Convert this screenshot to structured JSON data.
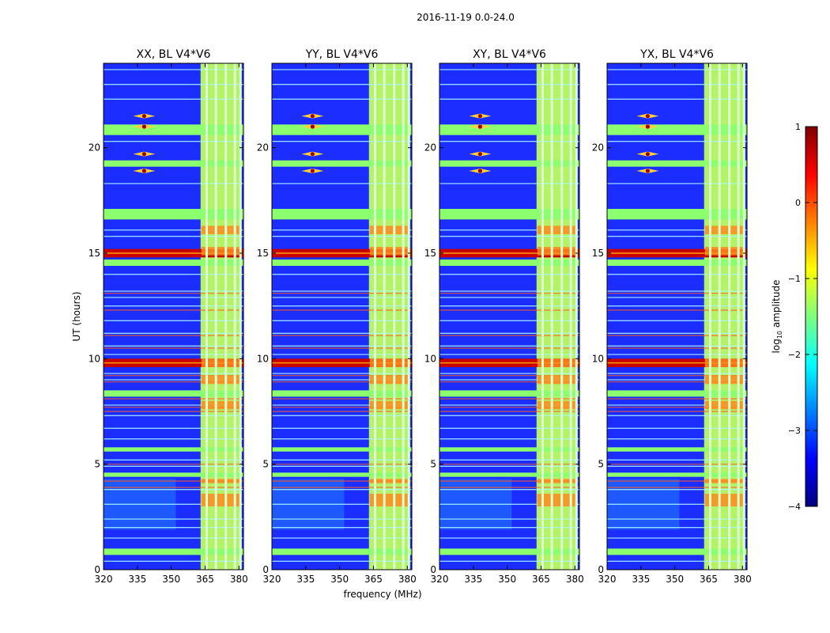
{
  "figure": {
    "suptitle": "2016-11-19 0.0-24.0"
  },
  "colors": {
    "jet": [
      "#00007f",
      "#0000ff",
      "#007fff",
      "#00ffff",
      "#7fff7f",
      "#ffff00",
      "#ff7f00",
      "#ff0000",
      "#7f0000"
    ],
    "panel_base": "#1b2eff",
    "band_strong": "#c80000",
    "band_medium": "#8cff6e",
    "channel_fill": "#b4f266"
  },
  "chart_data": [
    {
      "type": "heatmap",
      "title": "XX, BL V4*V6",
      "xlabel": "",
      "ylabel": "UT (hours)",
      "xlim": [
        320,
        382
      ],
      "ylim": [
        0,
        24
      ],
      "xticks": [
        "320",
        "335",
        "350",
        "365",
        "380"
      ],
      "yticks": [
        "0",
        "5",
        "10",
        "15",
        "20"
      ]
    },
    {
      "type": "heatmap",
      "title": "YY, BL V4*V6",
      "xlabel": "frequency (MHz)",
      "ylabel": "",
      "xlim": [
        320,
        382
      ],
      "ylim": [
        0,
        24
      ],
      "xticks": [
        "320",
        "335",
        "350",
        "365",
        "380"
      ],
      "yticks": [
        "0",
        "5",
        "10",
        "15",
        "20"
      ]
    },
    {
      "type": "heatmap",
      "title": "XY, BL V4*V6",
      "xlabel": "",
      "ylabel": "",
      "xlim": [
        320,
        382
      ],
      "ylim": [
        0,
        24
      ],
      "xticks": [
        "320",
        "335",
        "350",
        "365",
        "380"
      ],
      "yticks": [
        "0",
        "5",
        "10",
        "15",
        "20"
      ]
    },
    {
      "type": "heatmap",
      "title": "YX, BL V4*V6",
      "xlabel": "",
      "ylabel": "",
      "xlim": [
        320,
        382
      ],
      "ylim": [
        0,
        24
      ],
      "xticks": [
        "320",
        "335",
        "350",
        "365",
        "380"
      ],
      "yticks": [
        "0",
        "5",
        "10",
        "15",
        "20"
      ]
    }
  ],
  "features": {
    "strong_bands_ut": [
      [
        14.8,
        15.2
      ],
      [
        9.6,
        10.0
      ]
    ],
    "medium_bands_ut": [
      [
        20.6,
        21.1
      ],
      [
        19.1,
        19.4
      ],
      [
        16.6,
        17.1
      ],
      [
        14.4,
        14.7
      ],
      [
        8.2,
        8.5
      ],
      [
        5.6,
        5.8
      ],
      [
        4.4,
        4.6
      ],
      [
        0.7,
        1.0
      ]
    ],
    "thin_lines_ut": [
      23.7,
      23.0,
      22.3,
      20.3,
      18.3,
      16.1,
      15.8,
      14.0,
      13.2,
      12.9,
      12.5,
      11.8,
      11.2,
      10.6,
      10.2,
      9.3,
      9.0,
      7.8,
      7.3,
      6.7,
      6.2,
      5.2,
      4.9,
      3.8,
      3.1,
      2.4,
      2.0,
      1.5,
      0.4
    ],
    "red_lines_ut": [
      13.1,
      12.3,
      11.1,
      10.5,
      9.2,
      8.9,
      8.1,
      7.7,
      7.5,
      5.0,
      4.2,
      3.9
    ],
    "channel_range_mhz": [
      363,
      381
    ],
    "channel_dividers_mhz": [
      365.7,
      369.8,
      374.2,
      378.2
    ],
    "spot_freq_mhz": 338,
    "spot_ut": [
      21.5,
      21.0,
      19.7,
      18.9
    ],
    "hot_cells_ut": [
      [
        14.9,
        15.3
      ],
      [
        9.6,
        10.0
      ],
      [
        8.8,
        9.2
      ],
      [
        7.6,
        8.0
      ],
      [
        4.1,
        4.3
      ],
      [
        3.0,
        3.6
      ],
      [
        15.9,
        16.3
      ]
    ]
  },
  "colorbar": {
    "label_main": "log",
    "label_sub": "10",
    "label_rest": " amplitude",
    "vmin": -4,
    "vmax": 1,
    "ticks": [
      "1",
      "0",
      "−1",
      "−2",
      "−3",
      "−4"
    ]
  }
}
